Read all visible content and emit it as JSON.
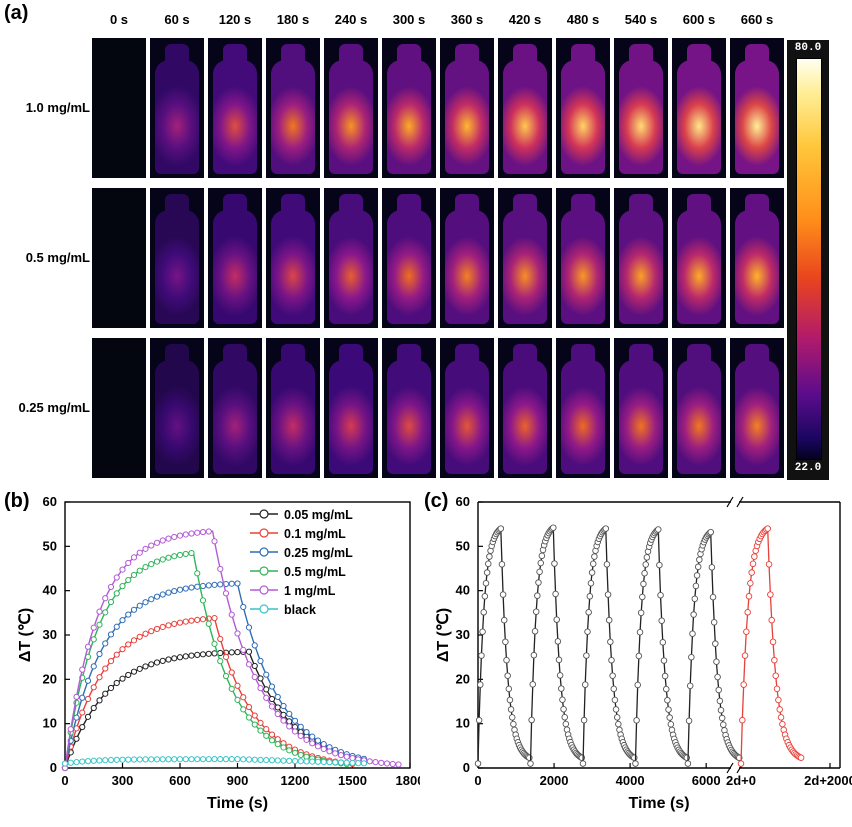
{
  "panel_a": {
    "label": "(a)",
    "times": [
      "0 s",
      "60 s",
      "120 s",
      "180 s",
      "240 s",
      "300 s",
      "360 s",
      "420 s",
      "480 s",
      "540 s",
      "600 s",
      "660 s"
    ],
    "rows": [
      {
        "label": "1.0 mg/mL",
        "intensity": [
          0,
          0.45,
          0.62,
          0.72,
          0.78,
          0.83,
          0.86,
          0.9,
          0.93,
          0.95,
          0.98,
          1.0
        ]
      },
      {
        "label": "0.5 mg/mL",
        "intensity": [
          0,
          0.35,
          0.52,
          0.6,
          0.66,
          0.7,
          0.74,
          0.77,
          0.79,
          0.81,
          0.83,
          0.85
        ]
      },
      {
        "label": "0.25 mg/mL",
        "intensity": [
          0,
          0.3,
          0.45,
          0.52,
          0.57,
          0.61,
          0.64,
          0.67,
          0.69,
          0.71,
          0.72,
          0.74
        ]
      }
    ],
    "colorbar": {
      "max_label": "80.0",
      "min_label": "22.0"
    }
  },
  "panel_b": {
    "label": "(b)"
  },
  "panel_c": {
    "label": "(c)"
  },
  "chart_data": [
    {
      "type": "line",
      "panel": "(b)",
      "xlabel": "Time (s)",
      "ylabel": "ΔT (℃)",
      "xlim": [
        0,
        1800
      ],
      "ylim": [
        0,
        60
      ],
      "xticks": [
        0,
        300,
        600,
        900,
        1200,
        1500,
        1800
      ],
      "xtick_labels": [
        "0",
        "300",
        "600",
        "900",
        "1200",
        "1500",
        "1800"
      ],
      "yticks": [
        0,
        10,
        20,
        30,
        40,
        50,
        60
      ],
      "legend_position": "top-right",
      "series": [
        {
          "name": "0.05 mg/mL",
          "color": "#222222",
          "plateau": 26.5,
          "tau": 210,
          "off_time": 960,
          "tau_c": 230,
          "end_time": 1560
        },
        {
          "name": "0.1 mg/mL",
          "color": "#e8403a",
          "plateau": 34.5,
          "tau": 200,
          "off_time": 780,
          "tau_c": 200,
          "end_time": 1510
        },
        {
          "name": "0.25 mg/mL",
          "color": "#2f6db8",
          "plateau": 42,
          "tau": 190,
          "off_time": 900,
          "tau_c": 220,
          "end_time": 1560
        },
        {
          "name": "0.5 mg/mL",
          "color": "#2fb45a",
          "plateau": 49.5,
          "tau": 170,
          "off_time": 670,
          "tau_c": 200,
          "end_time": 1470
        },
        {
          "name": "1 mg/mL",
          "color": "#b35ad6",
          "plateau": 54,
          "tau": 170,
          "off_time": 770,
          "tau_c": 230,
          "end_time": 1740
        },
        {
          "name": "black",
          "color": "#39c4c4",
          "plateau": 2,
          "tau": 150,
          "off_time": 900,
          "tau_c": 600,
          "end_time": 1570
        }
      ]
    },
    {
      "type": "line",
      "panel": "(c)",
      "xlabel": "Time (s)",
      "ylabel": "ΔT (℃)",
      "ylim": [
        0,
        60
      ],
      "yticks": [
        0,
        10,
        20,
        30,
        40,
        50,
        60
      ],
      "xtick_labels": [
        "0",
        "2000",
        "4000",
        "6000",
        "2d+0",
        "2d+2000"
      ],
      "axis_break": "6600 → 2d+0",
      "cycles": [
        {
          "start": 0,
          "peak": 54,
          "color": "#222222"
        },
        {
          "start": 1380,
          "peak": 54.2,
          "color": "#222222"
        },
        {
          "start": 2760,
          "peak": 54,
          "color": "#222222"
        },
        {
          "start": 4140,
          "peak": 53.8,
          "color": "#222222"
        },
        {
          "start": 5520,
          "peak": 53.2,
          "color": "#222222"
        },
        {
          "start": "2d+0",
          "peak": 54,
          "color": "#e8403a"
        }
      ]
    }
  ]
}
